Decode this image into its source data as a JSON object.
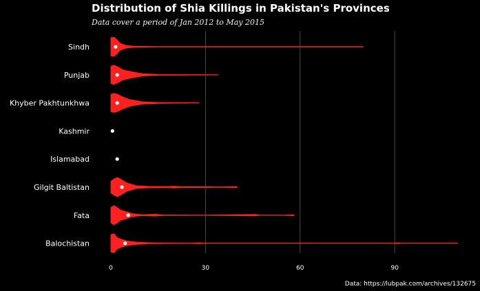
{
  "header": {
    "title": "Distribution of Shia Killings in Pakistan's Provinces",
    "subtitle": "Data cover a period of Jan 2012  to May 2015"
  },
  "footer": {
    "source": "Data: https://lubpak.com/archives/132675"
  },
  "colors": {
    "background": "#000000",
    "violin": "#ff2020",
    "median": "#ffffff",
    "grid": "#5a5a5a"
  },
  "chart_data": {
    "type": "violin",
    "orientation": "horizontal",
    "xlim": [
      -0.5,
      110
    ],
    "xticks": [
      0,
      30,
      60,
      90
    ],
    "grid": "vertical major lines",
    "categories": [
      "Sindh",
      "Punjab",
      "Khyber Pakhtunkhwa",
      "Kashmir",
      "Islamabad",
      "Gilgit Baltistan",
      "Fata",
      "Balochistan"
    ],
    "series": [
      {
        "category": "Sindh",
        "median": 1.5,
        "max": 80,
        "density": [
          [
            0,
            0.95
          ],
          [
            1,
            1
          ],
          [
            2,
            0.7
          ],
          [
            3,
            0.35
          ],
          [
            5,
            0.12
          ],
          [
            8,
            0.05
          ],
          [
            15,
            0.03
          ],
          [
            40,
            0.02
          ],
          [
            80,
            0.02
          ]
        ]
      },
      {
        "category": "Punjab",
        "median": 2,
        "max": 34,
        "density": [
          [
            0,
            0.9
          ],
          [
            1,
            1
          ],
          [
            2,
            0.85
          ],
          [
            4,
            0.5
          ],
          [
            7,
            0.3
          ],
          [
            10,
            0.12
          ],
          [
            15,
            0.05
          ],
          [
            25,
            0.03
          ],
          [
            34,
            0.02
          ]
        ]
      },
      {
        "category": "Khyber Pakhtunkhwa",
        "median": 2,
        "max": 28,
        "density": [
          [
            0,
            0.9
          ],
          [
            1,
            1
          ],
          [
            2,
            0.9
          ],
          [
            4,
            0.6
          ],
          [
            6,
            0.35
          ],
          [
            10,
            0.12
          ],
          [
            15,
            0.05
          ],
          [
            28,
            0.02
          ]
        ]
      },
      {
        "category": "Kashmir",
        "median": 0.5,
        "max": 0.5,
        "density": []
      },
      {
        "category": "Islamabad",
        "median": 2,
        "max": 2,
        "density": []
      },
      {
        "category": "Gilgit Baltistan",
        "median": 3.5,
        "max": 40,
        "density": [
          [
            0,
            0.6
          ],
          [
            1,
            0.85
          ],
          [
            2,
            1
          ],
          [
            3,
            0.85
          ],
          [
            5,
            0.45
          ],
          [
            8,
            0.15
          ],
          [
            12,
            0.08
          ],
          [
            18,
            0.06
          ],
          [
            20,
            0.1
          ],
          [
            22,
            0.05
          ],
          [
            30,
            0.04
          ],
          [
            35,
            0.03
          ],
          [
            40,
            0.06
          ]
        ]
      },
      {
        "category": "Fata",
        "median": 5.5,
        "max": 58,
        "density": [
          [
            0,
            0.8
          ],
          [
            1,
            1
          ],
          [
            2,
            0.8
          ],
          [
            3,
            0.55
          ],
          [
            5,
            0.35
          ],
          [
            7,
            0.15
          ],
          [
            10,
            0.05
          ],
          [
            14,
            0.1
          ],
          [
            17,
            0.03
          ],
          [
            30,
            0.02
          ],
          [
            46,
            0.08
          ],
          [
            47,
            0.02
          ],
          [
            55,
            0.02
          ],
          [
            58,
            0.06
          ]
        ]
      },
      {
        "category": "Balochistan",
        "median": 4.5,
        "max": 110,
        "density": [
          [
            0,
            0.9
          ],
          [
            1,
            1
          ],
          [
            2,
            0.6
          ],
          [
            3,
            0.45
          ],
          [
            5,
            0.25
          ],
          [
            8,
            0.12
          ],
          [
            12,
            0.06
          ],
          [
            15,
            0.04
          ],
          [
            25,
            0.02
          ],
          [
            28,
            0.05
          ],
          [
            30,
            0.02
          ],
          [
            40,
            0.02
          ],
          [
            90,
            0.02
          ],
          [
            91,
            0.05
          ],
          [
            92,
            0.02
          ],
          [
            110,
            0.02
          ]
        ]
      }
    ]
  }
}
